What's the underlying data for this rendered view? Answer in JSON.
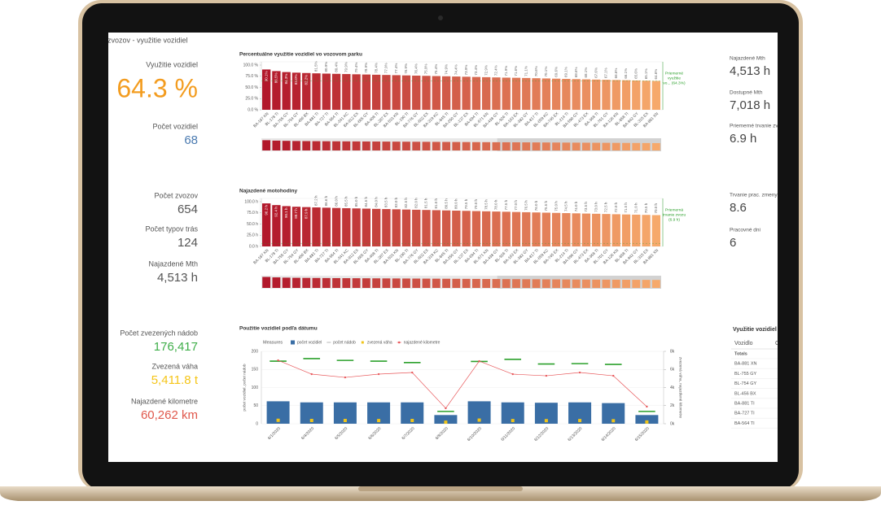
{
  "header": {
    "title": "za zvozov - využitie vozidiel"
  },
  "kpis_left": [
    {
      "label": "Využitie vozidiel",
      "value": "64.3 %",
      "color": "#f39c1f"
    },
    {
      "label": "Počet vozidiel",
      "value": "68",
      "color": "#4a7ab0"
    },
    {
      "label": "Počet zvozov",
      "value": "654",
      "color": "#555555"
    },
    {
      "label": "Počet typov trás",
      "value": "124",
      "color": "#555555"
    },
    {
      "label": "Najazdené Mth",
      "value": "4,513 h",
      "color": "#555555"
    },
    {
      "label": "Počet zvezených nádob",
      "value": "176,417",
      "color": "#3fae49"
    },
    {
      "label": "Zvezená váha",
      "value": "5,411.8 t",
      "color": "#f5c518"
    },
    {
      "label": "Najazdené kilometre",
      "value": "60,262 km",
      "color": "#e0584c"
    }
  ],
  "kpis_right": [
    {
      "label": "Najazdené Mth",
      "value": "4,513 h"
    },
    {
      "label": "Dostupné Mth",
      "value": "7,018 h"
    },
    {
      "label": "Priemerné trvanie zvozu",
      "value": "6.9 h"
    },
    {
      "label": "Trvanie prac. zmeny",
      "value": "8.6"
    },
    {
      "label": "Pracovné dni",
      "value": "6"
    }
  ],
  "table": {
    "title": "Využitie vozidiel pod",
    "columns": [
      "Vozidlo",
      "C"
    ],
    "rows": [
      "Totals",
      "BA-881 XN",
      "BL-755 GY",
      "BL-754 GY",
      "BL-456 BX",
      "BA-881 TI",
      "BA-727 TI",
      "BA-564 TI"
    ]
  },
  "chart_data": [
    {
      "type": "bar",
      "title": "Percentuálne využitie vozidiel vo vozovom parku",
      "categories": [
        "BA-187 KN",
        "BL-178 TI",
        "BA-755 GY",
        "BL-754 GY",
        "BL-456 BX",
        "BA-881 TI",
        "BA-727 TI",
        "BA-564 TI",
        "BL-341 KC",
        "BA-912 EX",
        "BL-665 GY",
        "BA-408 TI",
        "BL-287 EX",
        "BA-533 KN",
        "BL-190 TI",
        "BA-776 GY",
        "BL-602 EX",
        "BA-319 KC",
        "BL-845 TI",
        "BA-250 GY",
        "BL-137 EX",
        "BA-694 TI",
        "BL-571 KN",
        "BA-438 GY",
        "BL-926 TI",
        "BA-163 EX",
        "BL-382 GY",
        "BA-817 TI",
        "BL-059 KC",
        "BA-745 EX",
        "BL-214 TI",
        "BA-590 GY",
        "BL-473 EX",
        "BA-368 TI",
        "BL-701 GY",
        "BA-126 KN",
        "BL-858 TI",
        "BA-942 GY",
        "BL-315 EX",
        "BA-881 XN"
      ],
      "values": [
        90.1,
        86.5,
        84.3,
        83.0,
        82.2,
        81.5,
        80.9,
        80.4,
        79.9,
        79.4,
        78.9,
        78.4,
        77.9,
        77.4,
        76.9,
        76.4,
        75.9,
        75.4,
        74.9,
        74.4,
        73.9,
        73.4,
        72.9,
        72.4,
        71.9,
        71.6,
        71.1,
        70.6,
        70.1,
        69.6,
        69.1,
        68.6,
        68.1,
        67.6,
        67.1,
        66.6,
        66.1,
        65.6,
        65.1,
        64.6
      ],
      "value_labels": [
        "90.1%",
        "86.5%",
        "84.3%",
        "83.0%",
        "82.2%",
        "81.5%",
        "80.9%",
        "80.4%",
        "79.9%",
        "79.4%",
        "78.9%",
        "78.4%",
        "77.9%",
        "77.4%",
        "76.9%",
        "76.4%",
        "75.9%",
        "75.4%",
        "74.9%",
        "74.4%",
        "73.9%",
        "73.4%",
        "72.9%",
        "72.4%",
        "71.9%",
        "71.6%",
        "71.1%",
        "70.6%",
        "70.1%",
        "69.6%",
        "69.1%",
        "68.6%",
        "68.1%",
        "67.6%",
        "67.1%",
        "66.6%",
        "66.1%",
        "65.6%",
        "65.1%",
        "64.6%"
      ],
      "ylim": [
        0,
        100
      ],
      "yticks": [
        {
          "value": 0,
          "label": "0.0 %"
        },
        {
          "value": 25,
          "label": "25.0 %"
        },
        {
          "value": 50,
          "label": "50.0 %"
        },
        {
          "value": 75,
          "label": "75.0 %"
        },
        {
          "value": 100,
          "label": "100.0 %"
        }
      ],
      "colors": [
        "#b2182b",
        "#f6a96b"
      ],
      "reference": {
        "value": 64.3,
        "label": [
          "Priemerné",
          "využitie",
          "vo... (64.3%)"
        ],
        "color": "#2ca02c"
      }
    },
    {
      "type": "bar",
      "title": "Najazdené motohodiny",
      "categories": [
        "BA-187 KN",
        "BL-178 TI",
        "BA-755 GY",
        "BL-754 GY",
        "BL-456 BX",
        "BA-881 TI",
        "BA-727 TI",
        "BA-564 TI",
        "BL-341 KC",
        "BA-912 EX",
        "BL-665 GY",
        "BA-408 TI",
        "BL-287 EX",
        "BA-533 KN",
        "BL-190 TI",
        "BA-776 GY",
        "BL-602 EX",
        "BA-319 KC",
        "BL-845 TI",
        "BA-250 GY",
        "BL-137 EX",
        "BA-694 TI",
        "BL-571 KN",
        "BA-438 GY",
        "BL-926 TI",
        "BA-163 EX",
        "BL-382 GY",
        "BA-817 TI",
        "BL-059 KC",
        "BA-745 EX",
        "BL-214 TI",
        "BA-590 GY",
        "BL-473 EX",
        "BA-368 TI",
        "BL-701 GY",
        "BA-126 KN",
        "BL-858 TI",
        "BA-942 GY",
        "BL-315 EX",
        "BA-881 XN"
      ],
      "values": [
        96.2,
        92.4,
        90.1,
        88.7,
        87.9,
        87.2,
        86.6,
        86.0,
        85.5,
        85.0,
        84.5,
        84.0,
        83.5,
        83.0,
        82.5,
        82.0,
        81.5,
        81.0,
        80.5,
        80.0,
        79.5,
        79.0,
        78.5,
        78.0,
        77.5,
        77.0,
        76.5,
        76.0,
        75.5,
        75.0,
        74.5,
        74.0,
        73.5,
        73.0,
        72.5,
        72.0,
        71.5,
        71.0,
        70.5,
        70.0
      ],
      "value_labels": [
        "96.2 h",
        "92.4 h",
        "90.1 h",
        "88.7 h",
        "87.9 h",
        "87.2 h",
        "86.6 h",
        "86.0 h",
        "85.5 h",
        "85.0 h",
        "84.5 h",
        "84.0 h",
        "83.5 h",
        "83.0 h",
        "82.5 h",
        "82.0 h",
        "81.5 h",
        "81.0 h",
        "80.5 h",
        "80.0 h",
        "79.5 h",
        "79.0 h",
        "78.5 h",
        "78.0 h",
        "77.5 h",
        "77.0 h",
        "76.5 h",
        "76.0 h",
        "75.5 h",
        "75.0 h",
        "74.5 h",
        "74.0 h",
        "73.5 h",
        "73.0 h",
        "72.5 h",
        "72.0 h",
        "71.5 h",
        "71.0 h",
        "70.5 h",
        "70.0 h"
      ],
      "ylim": [
        0,
        100
      ],
      "yticks": [
        {
          "value": 0,
          "label": "0.0 h"
        },
        {
          "value": 25,
          "label": "25.0 h"
        },
        {
          "value": 50,
          "label": "50.0 h"
        },
        {
          "value": 75,
          "label": "75.0 h"
        },
        {
          "value": 100,
          "label": "100.0 h"
        }
      ],
      "colors": [
        "#b2182b",
        "#f6a96b"
      ],
      "reference": {
        "value": 6.9,
        "label": [
          "Priemerná",
          "trvanie zvozu",
          "(6.9 h)"
        ],
        "color": "#2ca02c"
      }
    },
    {
      "type": "combo",
      "title": "Použitie vozidiel podľa dátumu",
      "legend_title": "Measures",
      "categories": [
        "6/1/2020",
        "6/4/2020",
        "6/5/2020",
        "6/6/2020",
        "6/7/2020",
        "6/8/2020",
        "6/10/2020",
        "6/11/2020",
        "6/12/2020",
        "6/13/2020",
        "6/14/2020",
        "6/15/2020"
      ],
      "series": [
        {
          "name": "počet vozidiel",
          "color": "#3a6ea5",
          "kind": "bar",
          "values": [
            62,
            59,
            59,
            59,
            59,
            24,
            62,
            59,
            58,
            59,
            57,
            24
          ]
        },
        {
          "name": "počet nádob",
          "color": "#2ca02c",
          "kind": "dash",
          "values": [
            173,
            180,
            175,
            173,
            169,
            34,
            172,
            178,
            165,
            166,
            164,
            34
          ]
        },
        {
          "name": "zvezená váha",
          "color": "#f0c419",
          "kind": "square",
          "axis": "y2",
          "values": [
            380,
            360,
            360,
            350,
            360,
            170,
            400,
            350,
            340,
            350,
            330,
            190
          ]
        },
        {
          "name": "najazdené kilometre",
          "color": "#e8575a",
          "kind": "line",
          "axis": "y2",
          "values": [
            7010,
            5480,
            5120,
            5480,
            5660,
            1710,
            6920,
            5480,
            5300,
            5660,
            5300,
            1890
          ]
        }
      ],
      "ylim": [
        0,
        200
      ],
      "yticks": [
        0,
        50,
        100,
        150,
        200
      ],
      "y2lim": [
        0,
        8000
      ],
      "y2ticks": [
        {
          "value": 0,
          "label": "0k"
        },
        {
          "value": 2000,
          "label": "2k"
        },
        {
          "value": 4000,
          "label": "4k"
        },
        {
          "value": 6000,
          "label": "6k"
        },
        {
          "value": 8000,
          "label": "8k"
        }
      ],
      "ylabel": "počet vozidiel, počet nádob",
      "y2label": "zvezená váha, najazdené kilometre",
      "grid": true
    }
  ]
}
